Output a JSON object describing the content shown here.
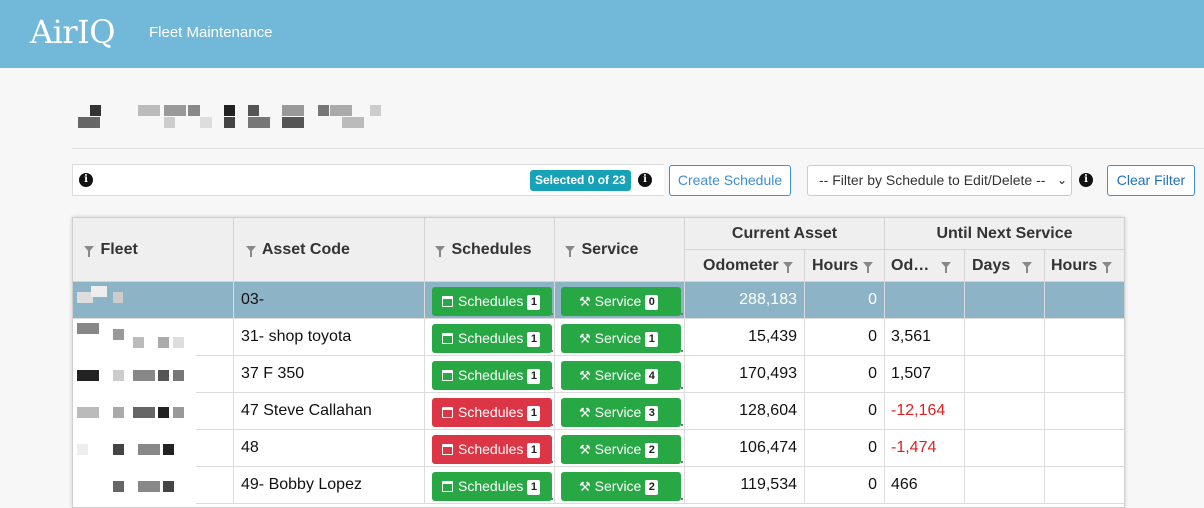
{
  "header": {
    "logo": "AirIQ",
    "app_name": "Fleet Maintenance"
  },
  "toolbar": {
    "selected_badge": "Selected 0 of 23",
    "create_label": "Create Schedule",
    "filter_select": "-- Filter by Schedule to Edit/Delete --",
    "clear_label": "Clear Filter",
    "info_glyph": "i"
  },
  "columns": {
    "fleet": "Fleet",
    "asset_code": "Asset Code",
    "schedules": "Schedules",
    "service": "Service",
    "current_asset": "Current Asset",
    "until_next_service": "Until Next Service",
    "odometer": "Odometer",
    "hours": "Hours",
    "od_trunc": "Od…",
    "days": "Days",
    "hours2": "Hours"
  },
  "labels": {
    "schedules_btn": "Schedules",
    "service_btn": "Service"
  },
  "colors": {
    "header": "#72b8d8",
    "green": "#28a745",
    "red": "#dc3545",
    "badge": "#17a2b8",
    "negative": "#e02020"
  },
  "rows": [
    {
      "asset_code": "03-",
      "schedules_count": "1",
      "schedules_status": "green",
      "service_count": "0",
      "odometer": "288,183",
      "hours": "0",
      "next_od": "",
      "next_od_negative": false,
      "selected": true
    },
    {
      "asset_code": "31- shop toyota",
      "schedules_count": "1",
      "schedules_status": "green",
      "service_count": "1",
      "odometer": "15,439",
      "hours": "0",
      "next_od": "3,561",
      "next_od_negative": false,
      "selected": false
    },
    {
      "asset_code": "37 F 350",
      "schedules_count": "1",
      "schedules_status": "green",
      "service_count": "4",
      "odometer": "170,493",
      "hours": "0",
      "next_od": "1,507",
      "next_od_negative": false,
      "selected": false
    },
    {
      "asset_code": "47 Steve Callahan",
      "schedules_count": "1",
      "schedules_status": "red",
      "service_count": "3",
      "odometer": "128,604",
      "hours": "0",
      "next_od": "-12,164",
      "next_od_negative": true,
      "selected": false
    },
    {
      "asset_code": "48",
      "schedules_count": "1",
      "schedules_status": "red",
      "service_count": "2",
      "odometer": "106,474",
      "hours": "0",
      "next_od": "-1,474",
      "next_od_negative": true,
      "selected": false
    },
    {
      "asset_code": "49- Bobby Lopez",
      "schedules_count": "1",
      "schedules_status": "green",
      "service_count": "2",
      "odometer": "119,534",
      "hours": "0",
      "next_od": "466",
      "next_od_negative": false,
      "selected": false
    }
  ]
}
